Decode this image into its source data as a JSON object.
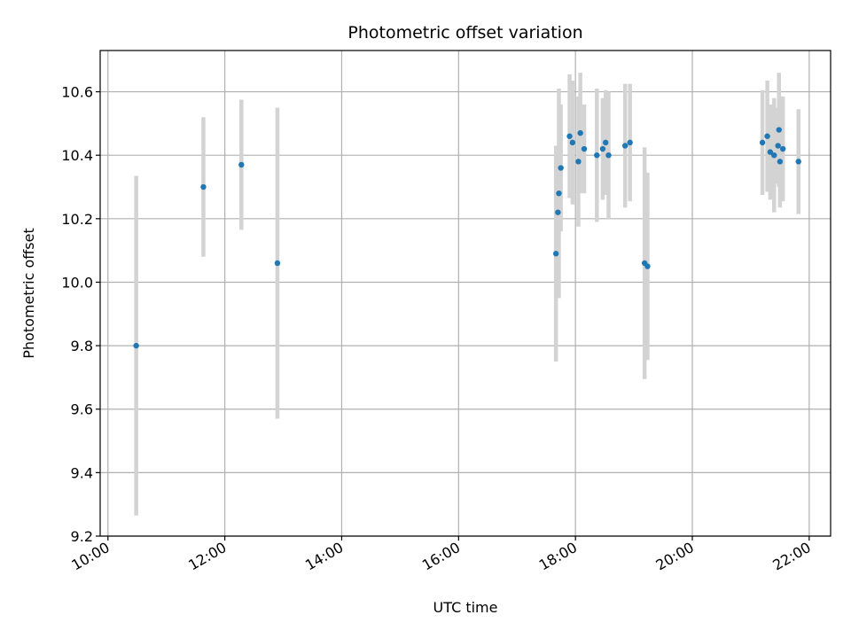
{
  "chart_data": {
    "type": "scatter",
    "title": "Photometric offset variation",
    "xlabel": "UTC time",
    "ylabel": "Photometric offset",
    "xlim": [
      "09:52",
      "22:22"
    ],
    "ylim": [
      9.2,
      10.73
    ],
    "x_ticks": [
      "10:00",
      "12:00",
      "14:00",
      "16:00",
      "18:00",
      "20:00",
      "22:00"
    ],
    "y_ticks": [
      "9.2",
      "9.4",
      "9.6",
      "9.8",
      "10.0",
      "10.2",
      "10.4",
      "10.6"
    ],
    "grid": true,
    "colors": {
      "point": "#1f77b4",
      "errorbar": "#d3d3d3",
      "grid": "#b0b0b0"
    },
    "series": [
      {
        "points": [
          {
            "x": "10:29",
            "y": 9.8,
            "yerr": 0.535
          },
          {
            "x": "11:38",
            "y": 10.3,
            "yerr": 0.22
          },
          {
            "x": "12:17",
            "y": 10.37,
            "yerr": 0.205
          },
          {
            "x": "12:54",
            "y": 10.06,
            "yerr": 0.49
          },
          {
            "x": "17:40",
            "y": 10.09,
            "yerr": 0.34
          },
          {
            "x": "17:42",
            "y": 10.22,
            "yerr": 0.21
          },
          {
            "x": "17:43",
            "y": 10.28,
            "yerr": 0.33
          },
          {
            "x": "17:45",
            "y": 10.36,
            "yerr": 0.2
          },
          {
            "x": "17:54",
            "y": 10.46,
            "yerr": 0.195
          },
          {
            "x": "17:57",
            "y": 10.44,
            "yerr": 0.195
          },
          {
            "x": "18:03",
            "y": 10.38,
            "yerr": 0.205
          },
          {
            "x": "18:05",
            "y": 10.47,
            "yerr": 0.19
          },
          {
            "x": "18:09",
            "y": 10.42,
            "yerr": 0.14
          },
          {
            "x": "18:22",
            "y": 10.4,
            "yerr": 0.21
          },
          {
            "x": "18:28",
            "y": 10.42,
            "yerr": 0.16
          },
          {
            "x": "18:31",
            "y": 10.44,
            "yerr": 0.165
          },
          {
            "x": "18:34",
            "y": 10.4,
            "yerr": 0.2
          },
          {
            "x": "18:51",
            "y": 10.43,
            "yerr": 0.195
          },
          {
            "x": "18:56",
            "y": 10.44,
            "yerr": 0.185
          },
          {
            "x": "19:11",
            "y": 10.06,
            "yerr": 0.365
          },
          {
            "x": "19:14",
            "y": 10.05,
            "yerr": 0.295
          },
          {
            "x": "21:12",
            "y": 10.44,
            "yerr": 0.165
          },
          {
            "x": "21:17",
            "y": 10.46,
            "yerr": 0.175
          },
          {
            "x": "21:20",
            "y": 10.41,
            "yerr": 0.15
          },
          {
            "x": "21:24",
            "y": 10.4,
            "yerr": 0.18
          },
          {
            "x": "21:28",
            "y": 10.43,
            "yerr": 0.12
          },
          {
            "x": "21:29",
            "y": 10.48,
            "yerr": 0.18
          },
          {
            "x": "21:30",
            "y": 10.38,
            "yerr": 0.145
          },
          {
            "x": "21:33",
            "y": 10.42,
            "yerr": 0.165
          },
          {
            "x": "21:49",
            "y": 10.38,
            "yerr": 0.165
          }
        ]
      }
    ]
  }
}
